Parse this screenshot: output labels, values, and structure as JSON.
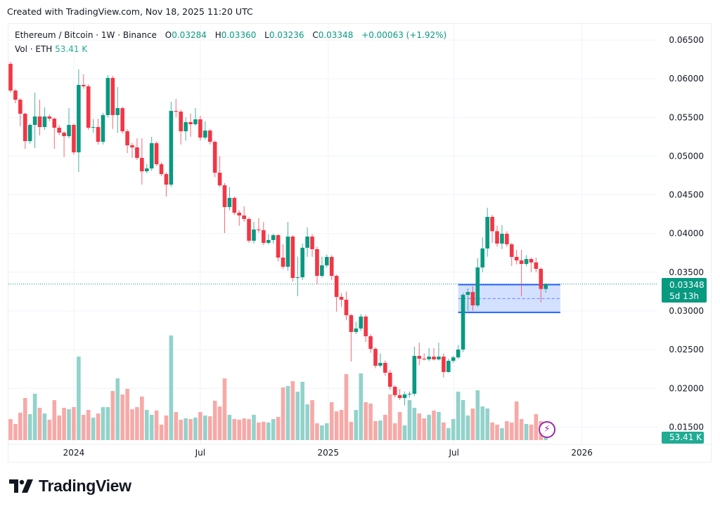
{
  "header": {
    "created_text": "Created with TradingView.com, Nov 18, 2025 11:20 UTC"
  },
  "legend": {
    "symbol": "Ethereum / Bitcoin · 1W · Binance",
    "o_label": "O",
    "o": "0.03284",
    "h_label": "H",
    "h": "0.03360",
    "l_label": "L",
    "l": "0.03236",
    "c_label": "C",
    "c": "0.03348",
    "change": "+0.00063 (+1.92%)",
    "vol_label": "Vol · ETH",
    "vol": "53.41 K"
  },
  "last_price": {
    "price": "0.03348",
    "countdown": "5d 13h"
  },
  "volume_label": "53.41 K",
  "footer": {
    "brand": "TradingView"
  },
  "colors": {
    "up": "#089981",
    "down": "#F23645",
    "vol_up": "#92d2cb",
    "vol_down": "#f7a9a7",
    "rect_border": "#2962ff",
    "rect_fill": "rgba(41,98,255,0.2)",
    "alert_icon": "#9c27b0"
  },
  "icons": {
    "alert": "lightning-bolt-icon",
    "logo": "tradingview-logo-icon"
  },
  "chart_data": {
    "type": "candlestick",
    "interval": "1W",
    "x_start": "2023-10-02",
    "y_ticks": [
      "0.06500",
      "0.06000",
      "0.05500",
      "0.05000",
      "0.04500",
      "0.04000",
      "0.03500",
      "0.03000",
      "0.02500",
      "0.02000",
      "0.01500"
    ],
    "ylim": [
      0.015,
      0.065
    ],
    "x_ticks": [
      {
        "label": "2024",
        "date": "2024-01-01"
      },
      {
        "label": "Jul",
        "date": "2024-07-01"
      },
      {
        "label": "2025",
        "date": "2025-01-01"
      },
      {
        "label": "Jul",
        "date": "2025-07-01"
      },
      {
        "label": "2026",
        "date": "2026-01-01"
      }
    ],
    "grid": true,
    "last_price_line": 0.03348,
    "annotation": {
      "type": "rectangle",
      "price_top": 0.0334,
      "price_bottom": 0.0298,
      "from": "2025-07-07",
      "to": "2025-12-01",
      "midline": "dashed"
    },
    "ohlc": [
      [
        0.06192,
        0.06219,
        0.0582,
        0.05847
      ],
      [
        0.05847,
        0.0587,
        0.05684,
        0.05729
      ],
      [
        0.05729,
        0.0575,
        0.05385,
        0.05548
      ],
      [
        0.05548,
        0.0556,
        0.05094,
        0.05194
      ],
      [
        0.05194,
        0.0542,
        0.05158,
        0.05403
      ],
      [
        0.05403,
        0.0582,
        0.05103,
        0.05512
      ],
      [
        0.05512,
        0.05729,
        0.05267,
        0.05376
      ],
      [
        0.05376,
        0.05629,
        0.0534,
        0.05512
      ],
      [
        0.05512,
        0.0554,
        0.0545,
        0.05484
      ],
      [
        0.05484,
        0.055,
        0.05094,
        0.05367
      ],
      [
        0.05367,
        0.054,
        0.0527,
        0.05303
      ],
      [
        0.05303,
        0.0532,
        0.04986,
        0.05258
      ],
      [
        0.05258,
        0.0562,
        0.0523,
        0.05403
      ],
      [
        0.05403,
        0.0542,
        0.0502,
        0.05049
      ],
      [
        0.05049,
        0.06119,
        0.04795,
        0.0592
      ],
      [
        0.0592,
        0.06056,
        0.0587,
        0.05902
      ],
      [
        0.05902,
        0.0593,
        0.0534,
        0.05367
      ],
      [
        0.05367,
        0.0548,
        0.053,
        0.05376
      ],
      [
        0.05376,
        0.05484,
        0.0515,
        0.05185
      ],
      [
        0.05185,
        0.0556,
        0.0515,
        0.0553
      ],
      [
        0.0553,
        0.06047,
        0.055,
        0.0601
      ],
      [
        0.0601,
        0.06038,
        0.0535,
        0.0553
      ],
      [
        0.0553,
        0.05892,
        0.053,
        0.0562
      ],
      [
        0.0562,
        0.0564,
        0.0529,
        0.05321
      ],
      [
        0.05321,
        0.0535,
        0.0504,
        0.0514
      ],
      [
        0.0514,
        0.0517,
        0.04977,
        0.05113
      ],
      [
        0.05113,
        0.0523,
        0.0495,
        0.04977
      ],
      [
        0.04977,
        0.0523,
        0.04632,
        0.04804
      ],
      [
        0.04804,
        0.049,
        0.0478,
        0.04841
      ],
      [
        0.04841,
        0.05249,
        0.0481,
        0.05167
      ],
      [
        0.05167,
        0.0519,
        0.0487,
        0.04895
      ],
      [
        0.04895,
        0.0492,
        0.0474,
        0.04768
      ],
      [
        0.04768,
        0.0479,
        0.04478,
        0.04632
      ],
      [
        0.04632,
        0.05702,
        0.046,
        0.05584
      ],
      [
        0.05584,
        0.05738,
        0.055,
        0.05575
      ],
      [
        0.05575,
        0.056,
        0.0515,
        0.05321
      ],
      [
        0.05321,
        0.055,
        0.052,
        0.05439
      ],
      [
        0.05439,
        0.0555,
        0.0525,
        0.05412
      ],
      [
        0.05412,
        0.0562,
        0.0539,
        0.05475
      ],
      [
        0.05475,
        0.0552,
        0.052,
        0.0524
      ],
      [
        0.0524,
        0.0545,
        0.0521,
        0.0533
      ],
      [
        0.0533,
        0.0535,
        0.0515,
        0.05185
      ],
      [
        0.05185,
        0.052,
        0.0473,
        0.04786
      ],
      [
        0.04786,
        0.05,
        0.046,
        0.04623
      ],
      [
        0.04623,
        0.0465,
        0.04006,
        0.04342
      ],
      [
        0.04342,
        0.046,
        0.043,
        0.0446
      ],
      [
        0.0446,
        0.0448,
        0.0424,
        0.04269
      ],
      [
        0.04269,
        0.043,
        0.041,
        0.04233
      ],
      [
        0.04233,
        0.0435,
        0.0415,
        0.04188
      ],
      [
        0.04188,
        0.0421,
        0.0388,
        0.03907
      ],
      [
        0.03907,
        0.0415,
        0.0387,
        0.04052
      ],
      [
        0.04052,
        0.042,
        0.0401,
        0.04043
      ],
      [
        0.04043,
        0.0415,
        0.0385,
        0.03879
      ],
      [
        0.03879,
        0.0399,
        0.0386,
        0.03916
      ],
      [
        0.03916,
        0.04,
        0.0387,
        0.03979
      ],
      [
        0.03979,
        0.0399,
        0.0364,
        0.03689
      ],
      [
        0.03689,
        0.0386,
        0.0354,
        0.03571
      ],
      [
        0.03571,
        0.0415,
        0.0352,
        0.03961
      ],
      [
        0.03961,
        0.0398,
        0.0338,
        0.03426
      ],
      [
        0.03426,
        0.037,
        0.0319,
        0.03435
      ],
      [
        0.03435,
        0.0387,
        0.034,
        0.03816
      ],
      [
        0.03816,
        0.04079,
        0.037,
        0.03961
      ],
      [
        0.03961,
        0.0399,
        0.037,
        0.03798
      ],
      [
        0.03798,
        0.0383,
        0.03344,
        0.03453
      ],
      [
        0.03453,
        0.037,
        0.0343,
        0.03589
      ],
      [
        0.03589,
        0.0373,
        0.0356,
        0.03698
      ],
      [
        0.03698,
        0.0372,
        0.034,
        0.03453
      ],
      [
        0.03453,
        0.0347,
        0.0299,
        0.03181
      ],
      [
        0.03181,
        0.0323,
        0.0305,
        0.03145
      ],
      [
        0.03145,
        0.0325,
        0.0288,
        0.02945
      ],
      [
        0.02945,
        0.0296,
        0.02347,
        0.02728
      ],
      [
        0.02728,
        0.0286,
        0.027,
        0.02773
      ],
      [
        0.02773,
        0.0296,
        0.0274,
        0.02927
      ],
      [
        0.02927,
        0.0295,
        0.026,
        0.02673
      ],
      [
        0.02673,
        0.027,
        0.0246,
        0.0251
      ],
      [
        0.0251,
        0.0253,
        0.0226,
        0.02292
      ],
      [
        0.02292,
        0.0245,
        0.0227,
        0.02329
      ],
      [
        0.02329,
        0.0236,
        0.0216,
        0.02202
      ],
      [
        0.02202,
        0.0224,
        0.0198,
        0.0202
      ],
      [
        0.0202,
        0.0204,
        0.0188,
        0.01912
      ],
      [
        0.01912,
        0.0199,
        0.0185,
        0.01875
      ],
      [
        0.01875,
        0.0196,
        0.0178,
        0.01921
      ],
      [
        0.01921,
        0.0196,
        0.0188,
        0.0193
      ],
      [
        0.0193,
        0.0254,
        0.019,
        0.02419
      ],
      [
        0.02419,
        0.0259,
        0.023,
        0.02383
      ],
      [
        0.02383,
        0.0245,
        0.0236,
        0.02375
      ],
      [
        0.02375,
        0.0252,
        0.0235,
        0.0241
      ],
      [
        0.0241,
        0.0252,
        0.0236,
        0.02374
      ],
      [
        0.02374,
        0.0259,
        0.0236,
        0.0241
      ],
      [
        0.0241,
        0.0245,
        0.0214,
        0.02211
      ],
      [
        0.02211,
        0.0238,
        0.022,
        0.02356
      ],
      [
        0.02356,
        0.0242,
        0.0233,
        0.024
      ],
      [
        0.024,
        0.0256,
        0.0238,
        0.02501
      ],
      [
        0.02501,
        0.0323,
        0.0247,
        0.03208
      ],
      [
        0.03208,
        0.0329,
        0.03,
        0.03245
      ],
      [
        0.03245,
        0.0332,
        0.03,
        0.03072
      ],
      [
        0.03072,
        0.0368,
        0.0305,
        0.03562
      ],
      [
        0.03562,
        0.0395,
        0.035,
        0.03807
      ],
      [
        0.03807,
        0.04333,
        0.037,
        0.04215
      ],
      [
        0.04215,
        0.0424,
        0.0388,
        0.0403
      ],
      [
        0.0403,
        0.041,
        0.0383,
        0.0387
      ],
      [
        0.0387,
        0.0411,
        0.038,
        0.03997
      ],
      [
        0.03997,
        0.0403,
        0.0383,
        0.03861
      ],
      [
        0.03861,
        0.0388,
        0.0358,
        0.03698
      ],
      [
        0.03698,
        0.0379,
        0.036,
        0.03653
      ],
      [
        0.03653,
        0.0379,
        0.0319,
        0.03607
      ],
      [
        0.03607,
        0.0372,
        0.0358,
        0.03671
      ],
      [
        0.03671,
        0.0369,
        0.035,
        0.03626
      ],
      [
        0.03626,
        0.0369,
        0.035,
        0.03544
      ],
      [
        0.03544,
        0.0356,
        0.0311,
        0.03284
      ],
      [
        0.03284,
        0.0336,
        0.03236,
        0.03348
      ]
    ],
    "volume_k": [
      159,
      122,
      207,
      318,
      196,
      350,
      244,
      201,
      154,
      302,
      186,
      244,
      233,
      249,
      631,
      191,
      228,
      170,
      201,
      249,
      249,
      371,
      466,
      345,
      387,
      233,
      249,
      329,
      228,
      191,
      223,
      117,
      186,
      790,
      212,
      154,
      164,
      159,
      170,
      212,
      186,
      180,
      297,
      254,
      466,
      191,
      159,
      154,
      164,
      159,
      191,
      133,
      138,
      133,
      159,
      175,
      398,
      408,
      445,
      366,
      440,
      270,
      302,
      127,
      111,
      127,
      286,
      217,
      228,
      498,
      138,
      228,
      504,
      286,
      276,
      143,
      148,
      191,
      345,
      127,
      212,
      111,
      302,
      244,
      201,
      164,
      191,
      223,
      212,
      133,
      90,
      159,
      366,
      302,
      186,
      239,
      376,
      254,
      239,
      133,
      117,
      90,
      143,
      133,
      292,
      159,
      122,
      117,
      196,
      143,
      53.41
    ]
  }
}
